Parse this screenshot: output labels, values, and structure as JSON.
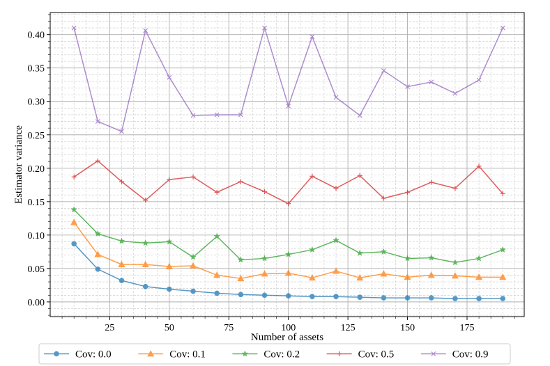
{
  "chart_data": {
    "type": "line",
    "title": "",
    "xlabel": "Number of assets",
    "ylabel": "Estimator variance",
    "xlim": [
      0,
      199
    ],
    "ylim": [
      -0.022,
      0.433
    ],
    "x_ticks": [
      25,
      50,
      75,
      100,
      125,
      150,
      175
    ],
    "y_ticks": [
      0.0,
      0.05,
      0.1,
      0.15,
      0.2,
      0.25,
      0.3,
      0.35,
      0.4
    ],
    "grid": true,
    "minor_grid": true,
    "legend_position": "bottom",
    "x": [
      10,
      20,
      30,
      40,
      50,
      60,
      70,
      80,
      90,
      100,
      110,
      120,
      130,
      140,
      150,
      160,
      170,
      180,
      190
    ],
    "series": [
      {
        "name": "Cov: 0.0",
        "color": "#1f77b4",
        "marker": "circle",
        "values": [
          0.087,
          0.049,
          0.032,
          0.023,
          0.019,
          0.016,
          0.013,
          0.011,
          0.01,
          0.009,
          0.008,
          0.008,
          0.007,
          0.006,
          0.006,
          0.006,
          0.005,
          0.005,
          0.005
        ]
      },
      {
        "name": "Cov: 0.1",
        "color": "#ff7f0e",
        "marker": "triangle",
        "values": [
          0.119,
          0.071,
          0.056,
          0.056,
          0.053,
          0.054,
          0.04,
          0.035,
          0.042,
          0.043,
          0.036,
          0.046,
          0.036,
          0.042,
          0.037,
          0.04,
          0.039,
          0.037,
          0.037
        ]
      },
      {
        "name": "Cov: 0.2",
        "color": "#2ca02c",
        "marker": "star",
        "values": [
          0.138,
          0.102,
          0.091,
          0.088,
          0.09,
          0.067,
          0.098,
          0.063,
          0.065,
          0.071,
          0.078,
          0.092,
          0.073,
          0.075,
          0.065,
          0.066,
          0.059,
          0.065,
          0.078
        ]
      },
      {
        "name": "Cov: 0.5",
        "color": "#d62728",
        "marker": "plus",
        "values": [
          0.187,
          0.211,
          0.18,
          0.152,
          0.183,
          0.187,
          0.164,
          0.18,
          0.165,
          0.147,
          0.188,
          0.17,
          0.189,
          0.155,
          0.164,
          0.179,
          0.17,
          0.203,
          0.162
        ]
      },
      {
        "name": "Cov: 0.9",
        "color": "#9467bd",
        "marker": "x",
        "values": [
          0.41,
          0.27,
          0.255,
          0.406,
          0.336,
          0.279,
          0.28,
          0.28,
          0.41,
          0.293,
          0.397,
          0.306,
          0.279,
          0.346,
          0.322,
          0.329,
          0.312,
          0.332,
          0.41
        ]
      }
    ]
  }
}
